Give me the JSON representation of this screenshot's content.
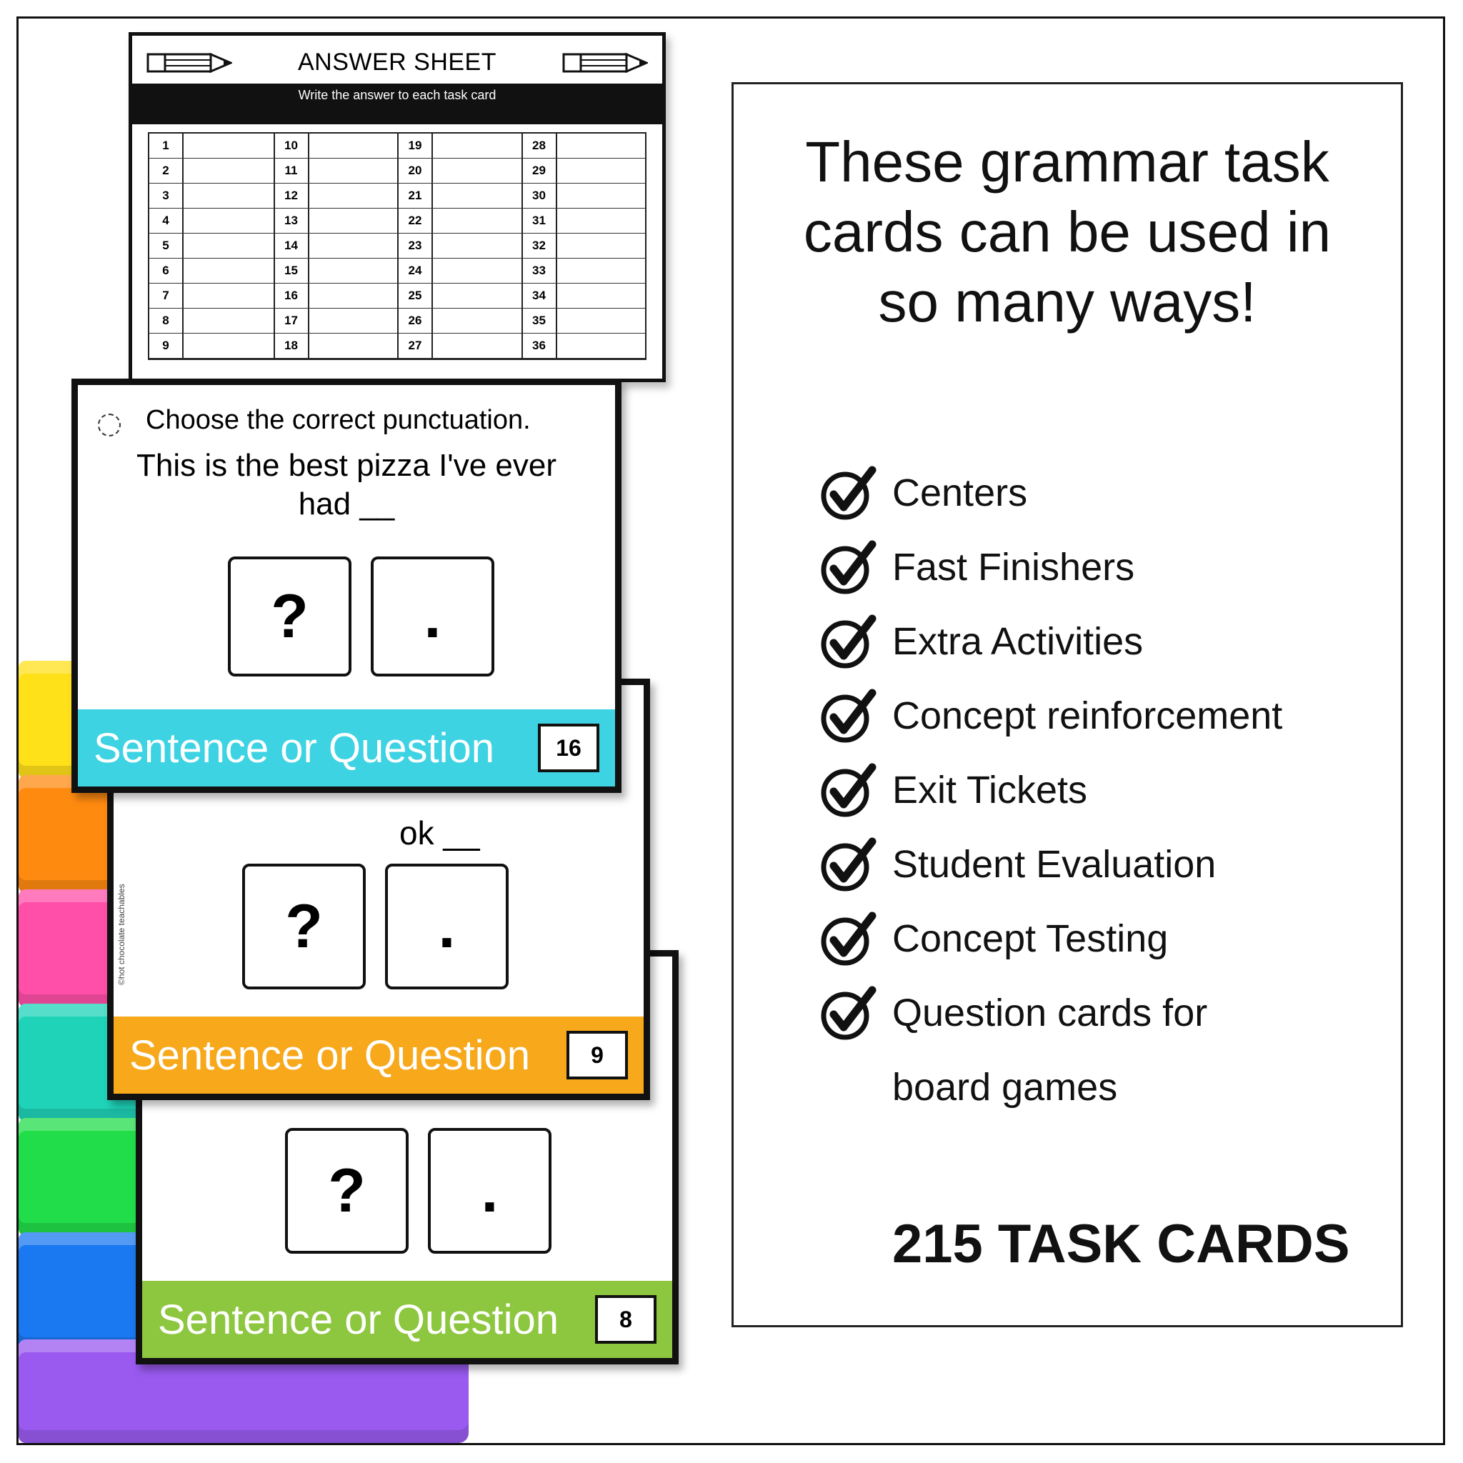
{
  "bins": {
    "colors": [
      "#ffe11a",
      "#ff8a10",
      "#ff4fa8",
      "#1fd3b8",
      "#22dd4a",
      "#1a78f0",
      "#9a5af0"
    ]
  },
  "answer_sheet": {
    "title": "ANSWER SHEET",
    "subtitle": "Write the answer to each task card",
    "left_numbers": [
      "1",
      "2",
      "3",
      "4",
      "5",
      "6",
      "7",
      "8",
      "9",
      "10",
      "11",
      "12",
      "13",
      "14",
      "15",
      "16",
      "17",
      "18"
    ],
    "right_numbers": [
      "19",
      "20",
      "21",
      "22",
      "23",
      "24",
      "25",
      "26",
      "27",
      "28",
      "29",
      "30",
      "31",
      "32",
      "33",
      "34",
      "35",
      "36"
    ]
  },
  "cards": [
    {
      "title": "Sentence or Question",
      "number": "8",
      "color": "#8dc63f",
      "options": [
        "?",
        "."
      ]
    },
    {
      "title": "Sentence or Question",
      "number": "9",
      "color": "#f7a81b",
      "options": [
        "?",
        "."
      ],
      "credit": "©hot chocolate teachables",
      "partial_text": "ok __"
    },
    {
      "title": "Sentence or Question",
      "number": "16",
      "color": "#3dd3e3",
      "prompt": "Choose the correct punctuation.",
      "sentence_line1": "This is the best pizza I've ever",
      "sentence_line2": "had __",
      "options": [
        "?",
        "."
      ]
    }
  ],
  "info": {
    "headline": [
      "These grammar task",
      "cards can be used in",
      "so many ways!"
    ],
    "uses": [
      "Centers",
      "Fast Finishers",
      "Extra Activities",
      "Concept reinforcement",
      "Exit Tickets",
      "Student Evaluation",
      "Concept Testing",
      "Question cards for",
      "board games"
    ],
    "total": "215 TASK CARDS"
  }
}
